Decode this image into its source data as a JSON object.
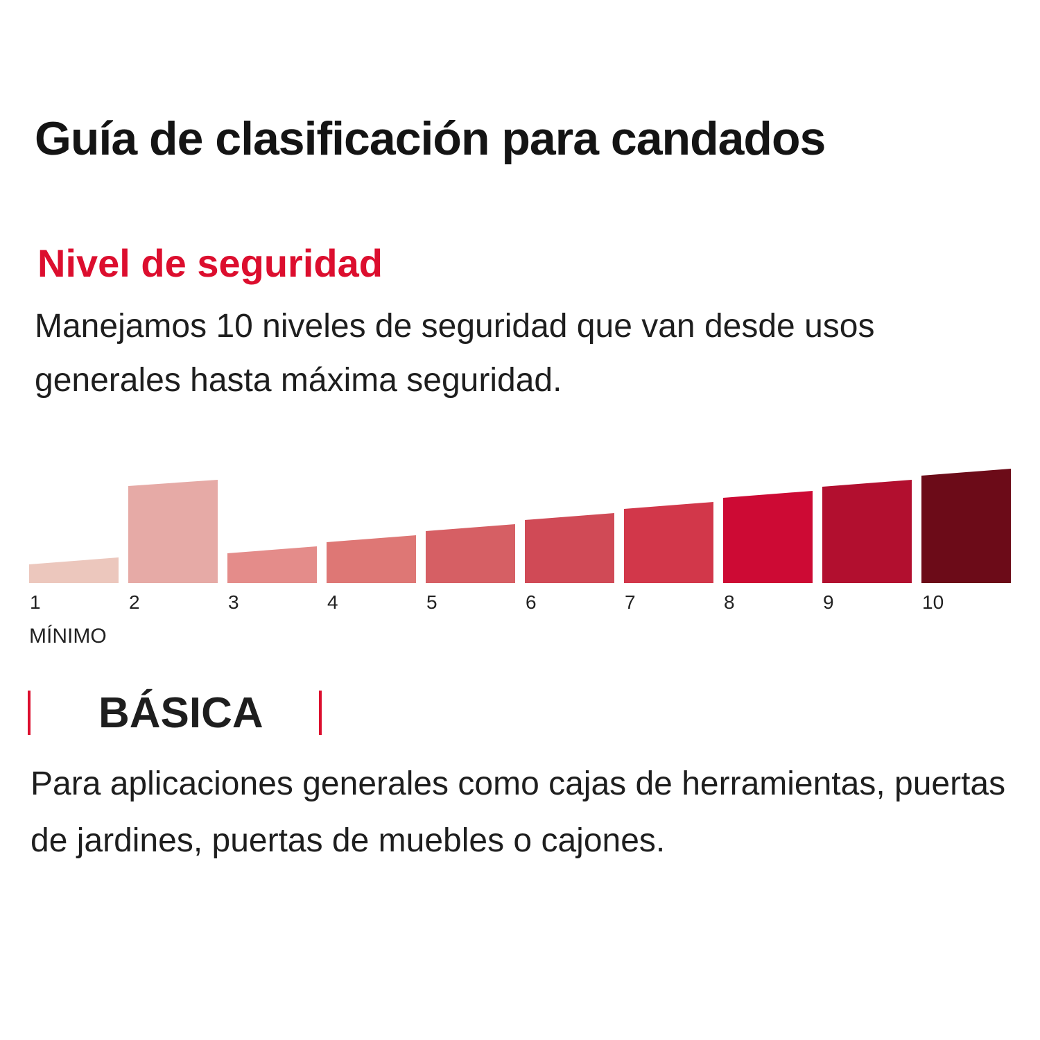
{
  "header": {
    "title": "Guía de clasificación para candados"
  },
  "section": {
    "subtitle": "Nivel de seguridad",
    "description": "Manejamos 10 niveles de seguridad que van desde usos generales hasta máxima seguridad."
  },
  "chart_data": {
    "type": "bar",
    "title": "",
    "xlabel": "",
    "ylabel": "",
    "categories": [
      "1",
      "2",
      "3",
      "4",
      "5",
      "6",
      "7",
      "8",
      "9",
      "10"
    ],
    "values": [
      1,
      8,
      2,
      3,
      4,
      5,
      6,
      7,
      8,
      9
    ],
    "highlight_index": 1,
    "min_label": "MÍNIMO",
    "colors": [
      "#ecc7bd",
      "#e6aaa6",
      "#e48c8a",
      "#de7775",
      "#d65f64",
      "#d04a56",
      "#d2374a",
      "#cd0a34",
      "#b20f2f",
      "#6c0b18"
    ],
    "ylim": [
      0,
      9
    ],
    "grid": false,
    "legend": "none"
  },
  "level": {
    "name": "BÁSICA",
    "description": "Para aplicaciones generales como cajas de herramientas, puertas de jardines, puertas de muebles o cajones.",
    "accent_color": "#dc0e2e"
  }
}
